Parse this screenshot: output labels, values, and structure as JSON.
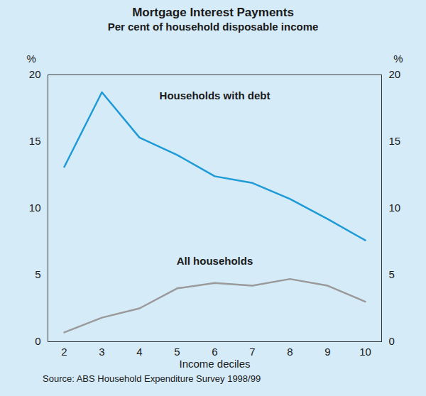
{
  "chart_data": {
    "type": "line",
    "title": "Mortgage Interest Payments",
    "subtitle": "Per cent of household disposable income",
    "xlabel": "Income deciles",
    "ylabel": "%",
    "source": "Source: ABS Household Expenditure Survey 1998/99",
    "categories": [
      "2",
      "3",
      "4",
      "5",
      "6",
      "7",
      "8",
      "9",
      "10"
    ],
    "series": [
      {
        "name": "Households with debt",
        "color": "#1e9ad6",
        "values": [
          13.1,
          18.7,
          15.3,
          14.0,
          12.4,
          11.9,
          10.7,
          9.2,
          7.6
        ]
      },
      {
        "name": "All households",
        "color": "#9a9a9a",
        "values": [
          0.7,
          1.8,
          2.5,
          4.0,
          4.4,
          4.2,
          4.7,
          4.2,
          3.0
        ]
      }
    ],
    "ylim": [
      0,
      20
    ],
    "yticks": [
      0,
      5,
      10,
      15,
      20
    ]
  }
}
